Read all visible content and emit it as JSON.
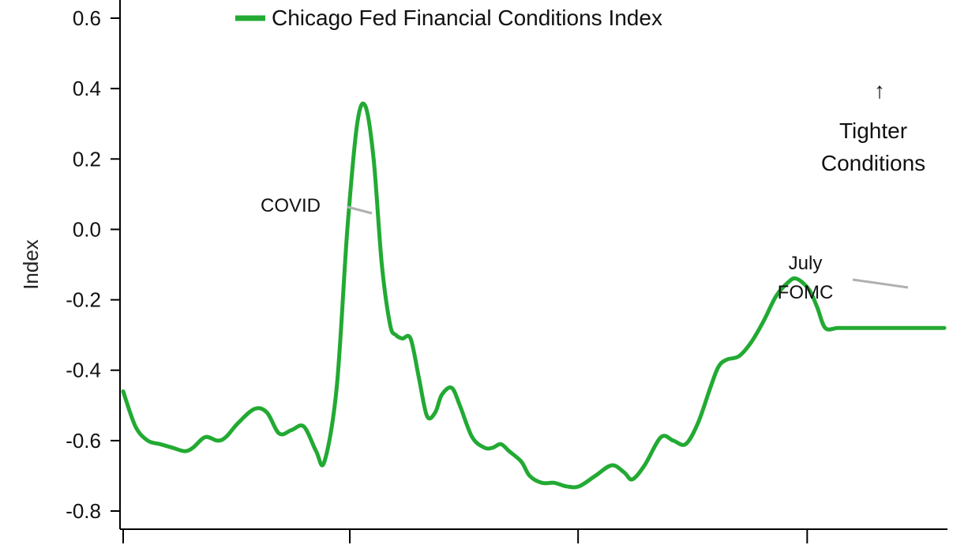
{
  "chart_data": {
    "type": "line",
    "title": "",
    "xlabel": "",
    "ylabel": "Index",
    "ylim": [
      -0.85,
      0.62
    ],
    "yticks": [
      0.6,
      0.4,
      0.2,
      0.0,
      -0.2,
      -0.4,
      -0.6,
      -0.8
    ],
    "ytick_labels": [
      "0.6",
      "0.4",
      "0.2",
      "0.0",
      "-0.2",
      "-0.4",
      "-0.6",
      "-0.8"
    ],
    "xlim": [
      0,
      100
    ],
    "xticks": [
      0,
      27.6,
      55.4,
      83.3
    ],
    "grid": false,
    "legend_position": "top",
    "series": [
      {
        "name": "Chicago Fed Financial Conditions Index",
        "color": "#22aa33",
        "x": [
          0,
          1.5,
          3,
          4.5,
          6,
          7.5,
          8.5,
          10,
          11.5,
          12.5,
          14,
          16,
          17.5,
          19,
          20.5,
          22,
          23.5,
          24.5,
          26,
          27.3,
          28.5,
          29.5,
          30.5,
          31.5,
          32.5,
          33.2,
          34,
          35,
          36,
          37,
          38,
          38.8,
          40,
          41,
          42.5,
          44,
          45,
          46,
          47,
          48.5,
          49.5,
          51,
          52.5,
          54,
          55.5,
          57.5,
          59.5,
          61,
          62,
          63.5,
          65.5,
          67,
          68.5,
          70,
          71.5,
          72.5,
          73.5,
          75,
          76.5,
          78,
          79.5,
          81,
          82,
          83.5,
          84.5,
          85.5,
          87,
          88.5,
          89.5,
          90.5,
          91.5,
          92.5,
          93,
          94,
          95,
          96,
          96.9,
          97.8,
          99,
          100
        ],
        "values": [
          -0.46,
          -0.56,
          -0.6,
          -0.61,
          -0.62,
          -0.63,
          -0.62,
          -0.59,
          -0.6,
          -0.59,
          -0.55,
          -0.51,
          -0.52,
          -0.58,
          -0.57,
          -0.56,
          -0.63,
          -0.66,
          -0.45,
          0.0,
          0.3,
          0.35,
          0.2,
          -0.1,
          -0.27,
          -0.3,
          -0.31,
          -0.31,
          -0.42,
          -0.53,
          -0.52,
          -0.47,
          -0.45,
          -0.5,
          -0.59,
          -0.62,
          -0.62,
          -0.61,
          -0.63,
          -0.66,
          -0.7,
          -0.72,
          -0.72,
          -0.73,
          -0.73,
          -0.7,
          -0.67,
          -0.69,
          -0.71,
          -0.67,
          -0.59,
          -0.6,
          -0.61,
          -0.55,
          -0.45,
          -0.39,
          -0.37,
          -0.36,
          -0.32,
          -0.26,
          -0.19,
          -0.15,
          -0.14,
          -0.17,
          -0.22,
          -0.28,
          -0.28,
          -0.28,
          -0.28,
          -0.28,
          -0.28,
          -0.28,
          -0.28,
          -0.28,
          -0.28,
          -0.28,
          -0.28,
          -0.28,
          -0.28,
          -0.28
        ]
      }
    ],
    "annotations": [
      {
        "text": "COVID"
      },
      {
        "text_lines": [
          "July",
          "FOMC"
        ]
      },
      {
        "symbol": "↑",
        "text_lines": [
          "Tighter",
          "Conditions"
        ]
      }
    ]
  }
}
